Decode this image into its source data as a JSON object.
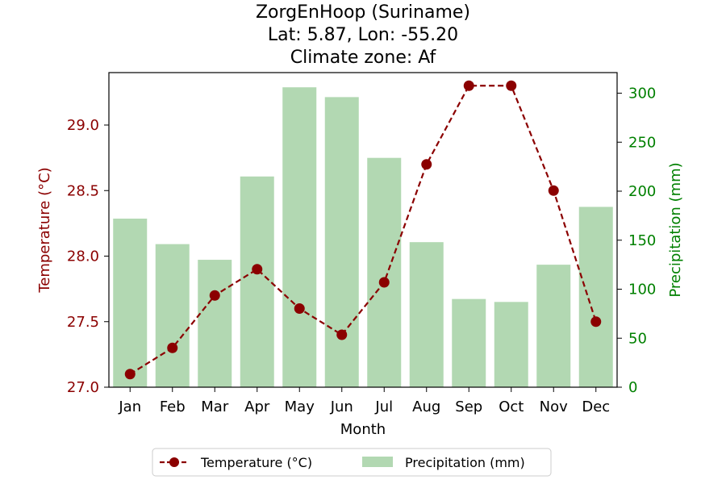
{
  "chart_data": {
    "type": "bar+line",
    "title": [
      "ZorgEnHoop (Suriname)",
      "Lat: 5.87, Lon: -55.20",
      "Climate zone: Af"
    ],
    "xlabel": "Month",
    "categories": [
      "Jan",
      "Feb",
      "Mar",
      "Apr",
      "May",
      "Jun",
      "Jul",
      "Aug",
      "Sep",
      "Oct",
      "Nov",
      "Dec"
    ],
    "series": [
      {
        "name": "Temperature (°C)",
        "type": "line",
        "axis": "left",
        "color": "#8b0000",
        "values": [
          27.1,
          27.3,
          27.7,
          27.9,
          27.6,
          27.4,
          27.8,
          28.7,
          29.3,
          29.3,
          28.5,
          27.5
        ]
      },
      {
        "name": "Precipitation (mm)",
        "type": "bar",
        "axis": "right",
        "color": "#b2d8b2",
        "values": [
          172,
          146,
          130,
          215,
          306,
          296,
          234,
          148,
          90,
          87,
          125,
          184
        ]
      }
    ],
    "y_left": {
      "label": "Temperature (°C)",
      "color": "#8b0000",
      "lim": [
        27.0,
        29.4
      ],
      "ticks": [
        "27.0",
        "27.5",
        "28.0",
        "28.5",
        "29.0"
      ],
      "tick_values": [
        27.0,
        27.5,
        28.0,
        28.5,
        29.0
      ]
    },
    "y_right": {
      "label": "Precipitation (mm)",
      "color": "#008000",
      "lim": [
        0,
        321
      ],
      "ticks": [
        "0",
        "50",
        "100",
        "150",
        "200",
        "250",
        "300"
      ],
      "tick_values": [
        0,
        50,
        100,
        150,
        200,
        250,
        300
      ]
    },
    "grid": false,
    "legend_position": "bottom-center"
  }
}
